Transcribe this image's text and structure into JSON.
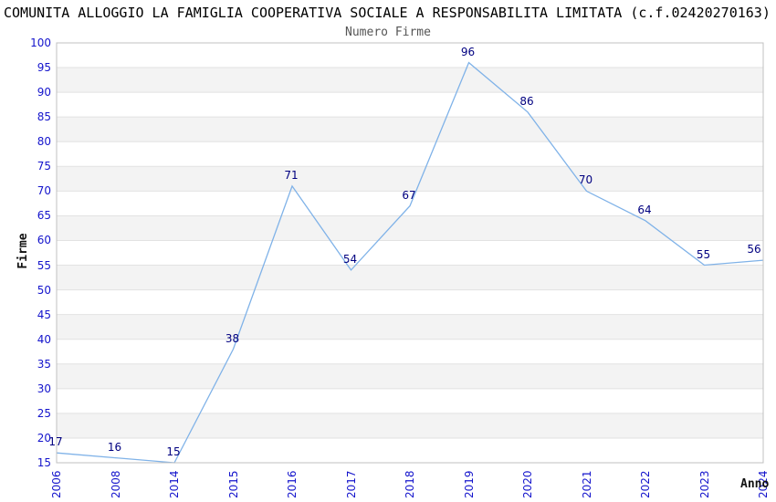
{
  "chart_data": {
    "type": "line",
    "title": "COMUNITA ALLOGGIO LA FAMIGLIA COOPERATIVA SOCIALE A RESPONSABILITA LIMITATA (c.f.02420270163)",
    "subtitle": "Numero Firme",
    "xlabel": "Anno",
    "ylabel": "Firme",
    "categories": [
      "2006",
      "2008",
      "2014",
      "2015",
      "2016",
      "2017",
      "2018",
      "2019",
      "2020",
      "2021",
      "2022",
      "2023",
      "2024"
    ],
    "values": [
      17,
      16,
      15,
      38,
      71,
      54,
      67,
      96,
      86,
      70,
      64,
      55,
      56
    ],
    "ylim": [
      15,
      100
    ],
    "ytick_step": 5,
    "grid": "alternating-horizontal-bands",
    "legend": "none",
    "markers": "none",
    "colors": {
      "line": "#7fb2e8",
      "tick_label": "#1414cc",
      "value_label": "#000080",
      "band_fill": "#f3f3f3",
      "gridline": "#e2e2e2",
      "plot_border": "#c0c0c0",
      "title": "#000000",
      "subtitle": "#555555",
      "background": "#ffffff"
    }
  }
}
